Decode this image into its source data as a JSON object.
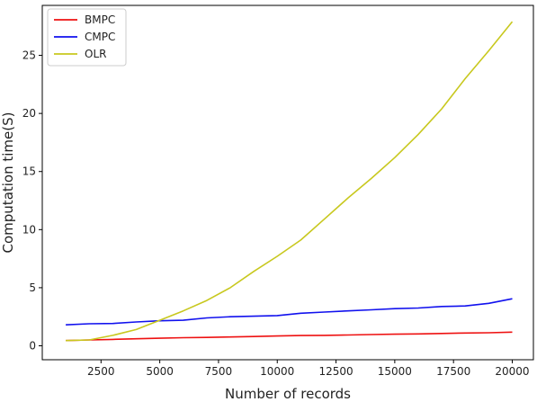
{
  "chart_data": {
    "type": "line",
    "xlabel": "Number of records",
    "ylabel": "Computation time(S)",
    "xlim": [
      0,
      20900
    ],
    "ylim": [
      -1.2,
      29.3
    ],
    "x_ticks": [
      2500,
      5000,
      7500,
      10000,
      12500,
      15000,
      17500,
      20000
    ],
    "y_ticks": [
      0,
      5,
      10,
      15,
      20,
      25
    ],
    "grid": false,
    "legend_position": "top-left",
    "x": [
      1000,
      2000,
      3000,
      4000,
      5000,
      6000,
      7000,
      8000,
      9000,
      10000,
      11000,
      12000,
      13000,
      14000,
      15000,
      16000,
      17000,
      18000,
      19000,
      20000
    ],
    "series": [
      {
        "name": "BMPC",
        "color": "#ee1111",
        "values": [
          0.45,
          0.5,
          0.55,
          0.6,
          0.65,
          0.7,
          0.72,
          0.76,
          0.8,
          0.84,
          0.88,
          0.9,
          0.93,
          0.97,
          1.0,
          1.02,
          1.06,
          1.1,
          1.12,
          1.18
        ]
      },
      {
        "name": "CMPC",
        "color": "#1111ee",
        "values": [
          1.8,
          1.9,
          1.92,
          2.05,
          2.15,
          2.2,
          2.4,
          2.5,
          2.55,
          2.6,
          2.8,
          2.9,
          3.0,
          3.1,
          3.2,
          3.25,
          3.38,
          3.43,
          3.65,
          4.05
        ]
      },
      {
        "name": "OLR",
        "color": "#c8c81e",
        "values": [
          0.45,
          0.5,
          0.9,
          1.4,
          2.2,
          3.0,
          3.9,
          5.0,
          6.4,
          7.7,
          9.1,
          10.9,
          12.7,
          14.4,
          16.2,
          18.2,
          20.4,
          23.0,
          25.4,
          27.9
        ]
      }
    ]
  }
}
